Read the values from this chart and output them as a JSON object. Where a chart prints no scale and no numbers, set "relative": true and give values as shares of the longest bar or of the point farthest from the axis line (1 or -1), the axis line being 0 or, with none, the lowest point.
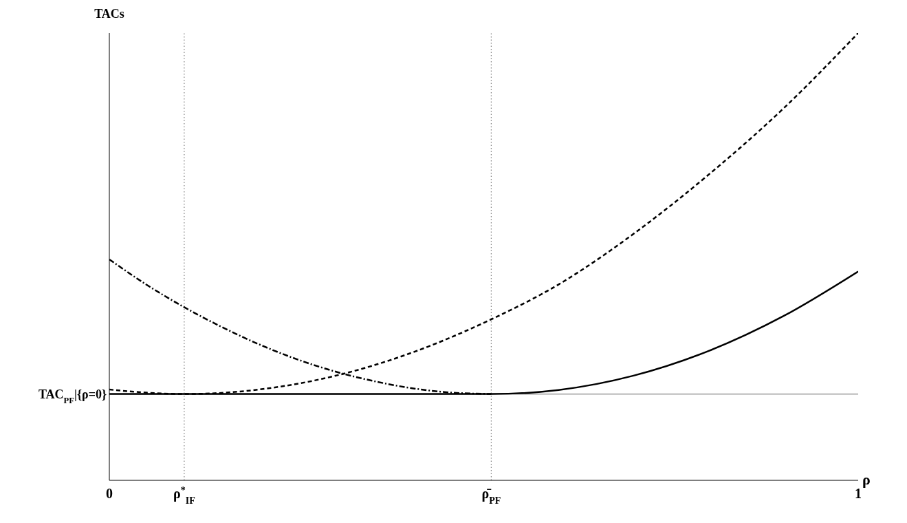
{
  "chart_data": {
    "type": "line",
    "relative": true,
    "ylabel": "TACs",
    "xlabel": "ρ",
    "xlim": [
      0,
      1
    ],
    "xticks": [
      0,
      {
        "value": 0.1,
        "label": "ρ$^{*}$$_{IF}$"
      },
      {
        "value": 0.51,
        "label": "ρ̄$_{PF}$"
      },
      1
    ],
    "marker": "none",
    "ref_lines": [
      {
        "axis": "y",
        "value": 0.193,
        "label": "TAC$_{PF}$|{ρ=0}",
        "color": "#808080",
        "line_style": "solid"
      },
      {
        "axis": "x",
        "value": 0.1,
        "color": "#808080",
        "line_style": "dotted"
      },
      {
        "axis": "x",
        "value": 0.51,
        "color": "#808080",
        "line_style": "dotted"
      }
    ],
    "series": [
      {
        "color": "#000000",
        "line_style": "solid",
        "x": [
          0,
          0.1,
          0.2,
          0.3,
          0.4,
          0.51,
          0.6,
          0.7,
          0.8,
          0.9,
          1
        ],
        "values": [
          0.193,
          0.193,
          0.193,
          0.193,
          0.193,
          0.193,
          0.202,
          0.234,
          0.289,
          0.367,
          0.467
        ]
      },
      {
        "color": "#000000",
        "line_style": "dashed",
        "x": [
          0,
          0.05,
          0.1,
          0.2,
          0.3,
          0.4,
          0.51,
          0.6,
          0.7,
          0.8,
          0.9,
          1
        ],
        "values": [
          0.203,
          0.196,
          0.193,
          0.203,
          0.233,
          0.283,
          0.36,
          0.438,
          0.551,
          0.683,
          0.831,
          1
        ]
      },
      {
        "color": "#000000",
        "line_style": "dashdot",
        "x": [
          0,
          0.05,
          0.1,
          0.15,
          0.2,
          0.25,
          0.3,
          0.35,
          0.4,
          0.45,
          0.51
        ],
        "values": [
          0.494,
          0.437,
          0.387,
          0.343,
          0.304,
          0.271,
          0.244,
          0.223,
          0.207,
          0.197,
          0.193
        ]
      }
    ]
  }
}
